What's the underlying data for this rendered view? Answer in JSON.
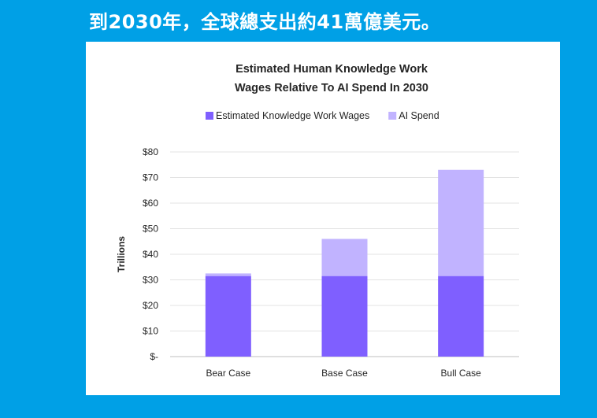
{
  "headline": "到2030年，全球總支出約41萬億美元。",
  "chart_data": {
    "type": "bar",
    "stacked": true,
    "title_lines": [
      "Estimated Human Knowledge Work",
      "Wages Relative To AI Spend In 2030"
    ],
    "ylabel": "Trillions",
    "categories": [
      "Bear Case",
      "Base Case",
      "Bull Case"
    ],
    "series": [
      {
        "name": "Estimated Knowledge Work Wages",
        "color": "#7f5fff",
        "values": [
          31.5,
          31.5,
          31.5
        ]
      },
      {
        "name": "AI Spend",
        "color": "#c1b3ff",
        "values": [
          1,
          14.5,
          41.5
        ]
      }
    ],
    "ylim": [
      0,
      80
    ],
    "yticks": [
      0,
      10,
      20,
      30,
      40,
      50,
      60,
      70,
      80
    ],
    "ytick_labels": [
      "$-",
      "$10",
      "$20",
      "$30",
      "$40",
      "$50",
      "$60",
      "$70",
      "$80"
    ],
    "grid": true,
    "legend_position": "top"
  }
}
